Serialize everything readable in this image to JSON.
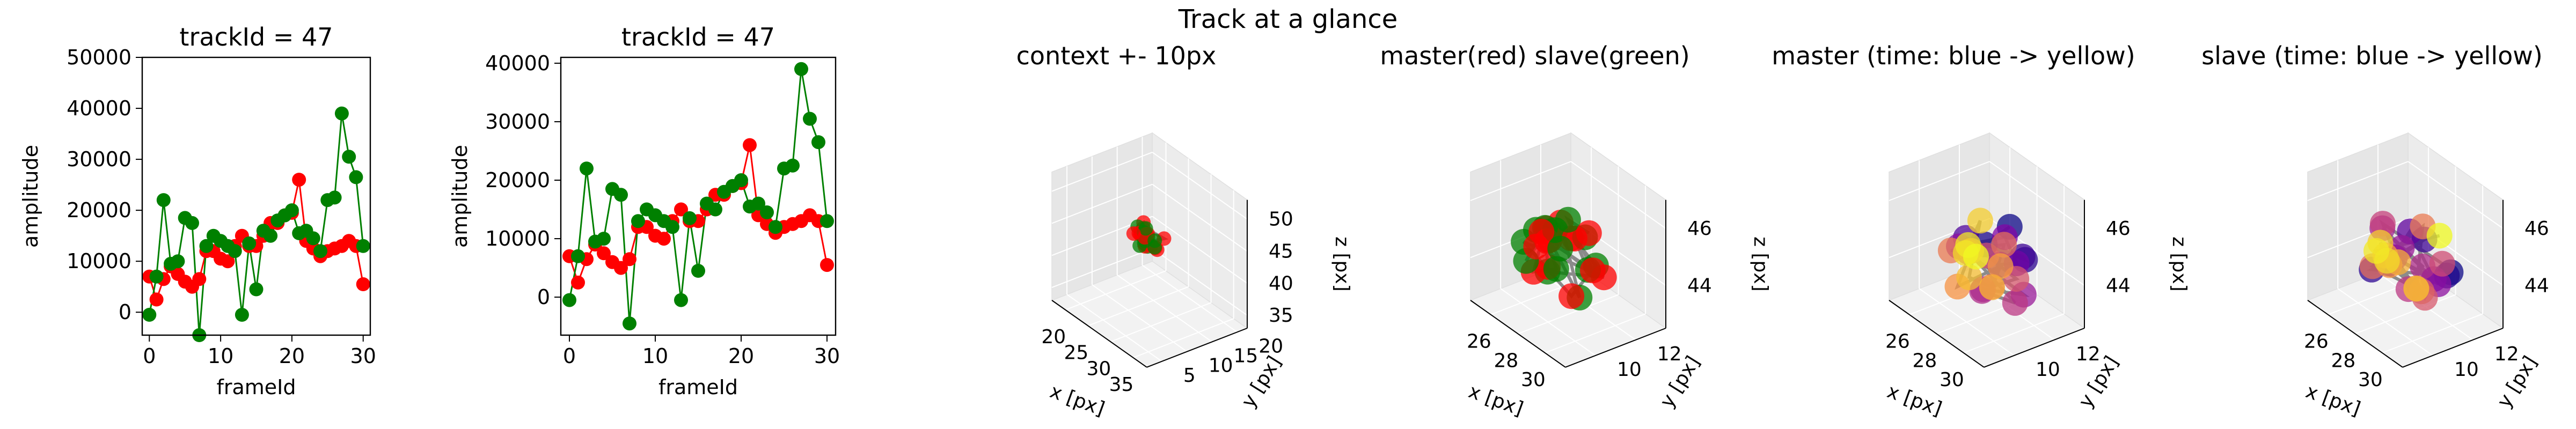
{
  "suptitle": "Track at a glance",
  "colors": {
    "master": "#ff0000",
    "slave": "#008000",
    "track_line": "#808080",
    "viridis_start": "#440154",
    "plasma_start": "#0d0887",
    "plasma_end": "#f0f921"
  },
  "chart_data": [
    {
      "type": "line",
      "title": "trackId = 47",
      "xlabel": "frameId",
      "ylabel": "amplitude",
      "xlim": [
        -1,
        31
      ],
      "ylim": [
        -4500,
        50000
      ],
      "xticks": [
        0,
        10,
        20,
        30
      ],
      "yticks": [
        0,
        10000,
        20000,
        30000,
        40000,
        50000
      ],
      "xtick_labels": [
        "0",
        "10",
        "20",
        "30"
      ],
      "ytick_labels": [
        "0",
        "10000",
        "20000",
        "30000",
        "40000",
        "50000"
      ],
      "series": [
        {
          "color": "#ff0000",
          "x": [
            0,
            1,
            2,
            3,
            4,
            5,
            6,
            7,
            8,
            9,
            10,
            11,
            12,
            13,
            14,
            15,
            16,
            17,
            18,
            19,
            20,
            21,
            22,
            23,
            24,
            25,
            26,
            27,
            28,
            29,
            30
          ],
          "values": [
            7000,
            2500,
            6500,
            9000,
            7500,
            6000,
            5000,
            6500,
            12000,
            12000,
            10500,
            10000,
            13000,
            15000,
            13000,
            13000,
            15000,
            17500,
            17500,
            19000,
            19500,
            26000,
            14000,
            12500,
            11000,
            12000,
            12500,
            13000,
            14000,
            13000,
            5500
          ]
        },
        {
          "color": "#008000",
          "x": [
            0,
            1,
            2,
            3,
            4,
            5,
            6,
            7,
            8,
            9,
            10,
            11,
            12,
            13,
            14,
            15,
            16,
            17,
            18,
            19,
            20,
            21,
            22,
            23,
            24,
            25,
            26,
            27,
            28,
            29,
            30
          ],
          "values": [
            -500,
            7000,
            22000,
            9500,
            10000,
            18500,
            17500,
            -4500,
            13000,
            15000,
            14000,
            13000,
            12000,
            -500,
            13500,
            4500,
            16000,
            15000,
            18000,
            19000,
            20000,
            15500,
            16000,
            14500,
            12000,
            22000,
            22500,
            39000,
            30500,
            26500,
            13000
          ]
        }
      ]
    },
    {
      "type": "line",
      "title": "trackId = 47",
      "xlabel": "frameId",
      "ylabel": "amplitude",
      "xlim": [
        -1,
        31
      ],
      "ylim": [
        -6500,
        41000
      ],
      "xticks": [
        0,
        10,
        20,
        30
      ],
      "yticks": [
        0,
        10000,
        20000,
        30000,
        40000
      ],
      "xtick_labels": [
        "0",
        "10",
        "20",
        "30"
      ],
      "ytick_labels": [
        "0",
        "10000",
        "20000",
        "30000",
        "40000"
      ],
      "series": [
        {
          "color": "#ff0000",
          "x": [
            0,
            1,
            2,
            3,
            4,
            5,
            6,
            7,
            8,
            9,
            10,
            11,
            12,
            13,
            14,
            15,
            16,
            17,
            18,
            19,
            20,
            21,
            22,
            23,
            24,
            25,
            26,
            27,
            28,
            29,
            30
          ],
          "values": [
            7000,
            2500,
            6500,
            9000,
            7500,
            6000,
            5000,
            6500,
            12000,
            12000,
            10500,
            10000,
            13000,
            15000,
            13000,
            13000,
            15000,
            17500,
            17500,
            19000,
            19500,
            26000,
            14000,
            12500,
            11000,
            12000,
            12500,
            13000,
            14000,
            13000,
            5500
          ]
        },
        {
          "color": "#008000",
          "x": [
            0,
            1,
            2,
            3,
            4,
            5,
            6,
            7,
            8,
            9,
            10,
            11,
            12,
            13,
            14,
            15,
            16,
            17,
            18,
            19,
            20,
            21,
            22,
            23,
            24,
            25,
            26,
            27,
            28,
            29,
            30
          ],
          "values": [
            -500,
            7000,
            22000,
            9500,
            10000,
            18500,
            17500,
            -4500,
            13000,
            15000,
            14000,
            13000,
            12000,
            -500,
            13500,
            4500,
            16000,
            15000,
            18000,
            19000,
            20000,
            15500,
            16000,
            14500,
            12000,
            22000,
            22500,
            39000,
            30500,
            26500,
            13000
          ]
        }
      ]
    },
    {
      "type": "scatter",
      "projection": "3d",
      "title": "context +- 10px",
      "xlabel": "x [px]",
      "ylabel": "y [px]",
      "zlabel": "z [px]",
      "xlim": [
        17,
        38
      ],
      "ylim": [
        2,
        22
      ],
      "zlim": [
        33,
        53
      ],
      "xticks": [
        20,
        25,
        30,
        35
      ],
      "yticks": [
        5,
        10,
        15,
        20
      ],
      "zticks": [
        35,
        40,
        45,
        50
      ],
      "xtick_labels": [
        "20",
        "25",
        "30",
        "35"
      ],
      "ytick_labels": [
        "5",
        "10",
        "15",
        "20"
      ],
      "ztick_labels": [
        "35",
        "40",
        "45",
        "50"
      ],
      "point_size": 9,
      "cluster": {
        "cx": 27.5,
        "cy": 11.5,
        "cz": 45,
        "rx": 2.5,
        "ry": 1.5,
        "rz": 1.0
      },
      "coloring": "red-green"
    },
    {
      "type": "scatter",
      "projection": "3d",
      "title": "master(red) slave(green)",
      "xlabel": "x [px]",
      "ylabel": "y [px]",
      "zlabel": "z [px]",
      "xlim": [
        24.5,
        31.5
      ],
      "ylim": [
        8.5,
        13.5
      ],
      "zlim": [
        42.5,
        47
      ],
      "xticks": [
        26,
        28,
        30
      ],
      "yticks": [
        10,
        12
      ],
      "zticks": [
        44,
        46
      ],
      "xtick_labels": [
        "26",
        "28",
        "30"
      ],
      "ytick_labels": [
        "10",
        "12"
      ],
      "ztick_labels": [
        "44",
        "46"
      ],
      "point_size": 16,
      "cluster": {
        "cx": 27.8,
        "cy": 11.2,
        "cz": 44.6,
        "rx": 2.0,
        "ry": 1.2,
        "rz": 1.0
      },
      "coloring": "red-green"
    },
    {
      "type": "scatter",
      "projection": "3d",
      "title": "master (time: blue -> yellow)",
      "xlabel": "x [px]",
      "ylabel": "y [px]",
      "zlabel": "z [px]",
      "xlim": [
        24.5,
        31.5
      ],
      "ylim": [
        8.5,
        13.5
      ],
      "zlim": [
        42.5,
        47
      ],
      "xticks": [
        26,
        28,
        30
      ],
      "yticks": [
        10,
        12
      ],
      "zticks": [
        44,
        46
      ],
      "xtick_labels": [
        "26",
        "28",
        "30"
      ],
      "ytick_labels": [
        "10",
        "12"
      ],
      "ztick_labels": [
        "44",
        "46"
      ],
      "point_size": 16,
      "cluster": {
        "cx": 28.2,
        "cy": 11.0,
        "cz": 44.5,
        "rx": 2.0,
        "ry": 1.2,
        "rz": 1.0
      },
      "coloring": "plasma"
    },
    {
      "type": "scatter",
      "projection": "3d",
      "title": "slave (time: blue -> yellow)",
      "xlabel": "x [px]",
      "ylabel": "y [px]",
      "zlabel": "z [px]",
      "xlim": [
        24.5,
        31.5
      ],
      "ylim": [
        8.5,
        13.5
      ],
      "zlim": [
        42.5,
        47
      ],
      "xticks": [
        26,
        28,
        30
      ],
      "yticks": [
        10,
        12
      ],
      "zticks": [
        44,
        46
      ],
      "xtick_labels": [
        "26",
        "28",
        "30"
      ],
      "ytick_labels": [
        "10",
        "12"
      ],
      "ztick_labels": [
        "44",
        "46"
      ],
      "point_size": 16,
      "cluster": {
        "cx": 28.2,
        "cy": 11.0,
        "cz": 44.5,
        "rx": 2.0,
        "ry": 1.2,
        "rz": 1.0
      },
      "coloring": "plasma"
    }
  ]
}
